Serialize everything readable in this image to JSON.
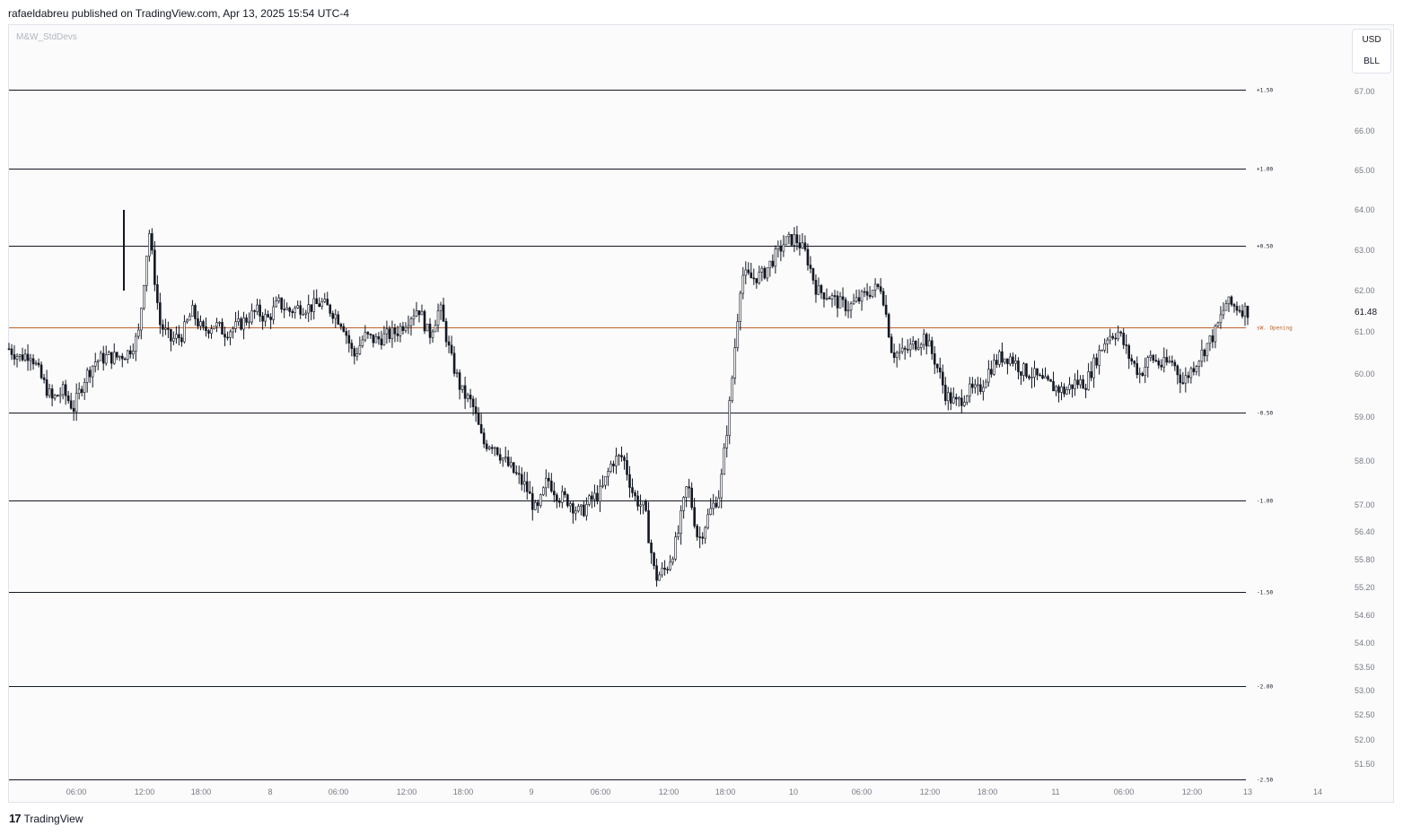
{
  "header": {
    "publisher_text": "rafaeldabreu published on TradingView.com, Apr 13, 2025 15:54 UTC-4"
  },
  "indicator": {
    "name": "M&W_StdDevs"
  },
  "currency": {
    "primary": "USD",
    "secondary": "BLL"
  },
  "footer": {
    "brand": "TradingView",
    "logo_glyph": "17"
  },
  "colors": {
    "opening_line": "#c0622d",
    "level_line": "#131722",
    "candles": "#131722",
    "background": "#fbfbfb",
    "axis_text": "#787b86"
  },
  "chart_data": {
    "type": "candlestick",
    "title": "",
    "last_price": "61.48",
    "y_axis_ticks": [
      "67.00",
      "66.00",
      "65.00",
      "64.00",
      "63.00",
      "62.00",
      "61.00",
      "60.00",
      "59.00",
      "58.00",
      "57.00",
      "56.40",
      "55.80",
      "55.20",
      "54.60",
      "54.00",
      "53.50",
      "53.00",
      "52.50",
      "52.00",
      "51.50"
    ],
    "x_axis_ticks": [
      "06:00",
      "12:00",
      "18:00",
      "8",
      "06:00",
      "12:00",
      "18:00",
      "9",
      "06:00",
      "12:00",
      "18:00",
      "10",
      "06:00",
      "12:00",
      "18:00",
      "11",
      "06:00",
      "12:00",
      "13",
      "14"
    ],
    "levels": [
      {
        "label": "+1.50",
        "price": 67.05
      },
      {
        "label": "+1.00",
        "price": 65.05
      },
      {
        "label": "+0.50",
        "price": 63.1
      },
      {
        "label": "-0.50",
        "price": 59.1
      },
      {
        "label": "-1.00",
        "price": 57.1
      },
      {
        "label": "-1.50",
        "price": 55.1
      },
      {
        "label": "-2.00",
        "price": 53.1
      },
      {
        "label": "-2.50",
        "price": 51.0
      }
    ],
    "opening_line": {
      "label": "sW. Opening",
      "price": 61.1
    },
    "price_path": [
      [
        0,
        60.6
      ],
      [
        1,
        60.4
      ],
      [
        2,
        60.5
      ],
      [
        3,
        59.9
      ],
      [
        4,
        59.4
      ],
      [
        5,
        59.6
      ],
      [
        6,
        59.2
      ],
      [
        7,
        59.9
      ],
      [
        8,
        60.3
      ],
      [
        9,
        60.4
      ],
      [
        10,
        60.4
      ],
      [
        11,
        60.5
      ],
      [
        12,
        60.9
      ],
      [
        13,
        63.5
      ],
      [
        14,
        61.2
      ],
      [
        15,
        60.8
      ],
      [
        16,
        60.9
      ],
      [
        17,
        61.5
      ],
      [
        18,
        61.0
      ],
      [
        19,
        61.2
      ],
      [
        20,
        61.0
      ],
      [
        21,
        61.1
      ],
      [
        22,
        61.3
      ],
      [
        23,
        61.5
      ],
      [
        24,
        61.3
      ],
      [
        25,
        61.7
      ],
      [
        26,
        61.5
      ],
      [
        27,
        61.6
      ],
      [
        28,
        61.6
      ],
      [
        29,
        61.7
      ],
      [
        30,
        61.5
      ],
      [
        31,
        61.2
      ],
      [
        32,
        60.4
      ],
      [
        33,
        60.9
      ],
      [
        34,
        60.8
      ],
      [
        35,
        60.9
      ],
      [
        36,
        61.0
      ],
      [
        37,
        61.3
      ],
      [
        38,
        61.6
      ],
      [
        39,
        60.9
      ],
      [
        40,
        61.6
      ],
      [
        41,
        60.4
      ],
      [
        42,
        59.6
      ],
      [
        43,
        59.3
      ],
      [
        44,
        58.4
      ],
      [
        45,
        58.4
      ],
      [
        46,
        58.0
      ],
      [
        47,
        57.7
      ],
      [
        48,
        57.4
      ],
      [
        49,
        56.8
      ],
      [
        50,
        57.6
      ],
      [
        51,
        57.2
      ],
      [
        52,
        57.1
      ],
      [
        53,
        56.8
      ],
      [
        54,
        57.1
      ],
      [
        55,
        57.3
      ],
      [
        56,
        58.0
      ],
      [
        57,
        58.1
      ],
      [
        58,
        57.2
      ],
      [
        59,
        56.9
      ],
      [
        60,
        55.4
      ],
      [
        61,
        55.6
      ],
      [
        62,
        56.2
      ],
      [
        63,
        57.5
      ],
      [
        64,
        56.2
      ],
      [
        65,
        56.8
      ],
      [
        66,
        57.3
      ],
      [
        67,
        59.5
      ],
      [
        68,
        62.4
      ],
      [
        69,
        62.3
      ],
      [
        70,
        62.4
      ],
      [
        71,
        62.8
      ],
      [
        72,
        63.2
      ],
      [
        73,
        63.3
      ],
      [
        74,
        62.9
      ],
      [
        75,
        62.0
      ],
      [
        76,
        61.9
      ],
      [
        77,
        61.7
      ],
      [
        78,
        61.6
      ],
      [
        79,
        61.8
      ],
      [
        80,
        62.0
      ],
      [
        81,
        62.1
      ],
      [
        82,
        60.5
      ],
      [
        83,
        60.5
      ],
      [
        84,
        60.7
      ],
      [
        85,
        60.9
      ],
      [
        86,
        60.3
      ],
      [
        87,
        59.5
      ],
      [
        88,
        59.3
      ],
      [
        89,
        59.6
      ],
      [
        90,
        59.6
      ],
      [
        91,
        60.1
      ],
      [
        92,
        60.4
      ],
      [
        93,
        60.4
      ],
      [
        94,
        60.1
      ],
      [
        95,
        60.0
      ],
      [
        96,
        59.8
      ],
      [
        97,
        59.7
      ],
      [
        98,
        59.6
      ],
      [
        99,
        59.8
      ],
      [
        100,
        59.8
      ],
      [
        101,
        60.4
      ],
      [
        102,
        60.9
      ],
      [
        103,
        61.0
      ],
      [
        104,
        60.4
      ],
      [
        105,
        60.0
      ],
      [
        106,
        60.4
      ],
      [
        107,
        60.2
      ],
      [
        108,
        60.3
      ],
      [
        109,
        59.8
      ],
      [
        110,
        60.2
      ],
      [
        111,
        60.6
      ],
      [
        112,
        61.0
      ],
      [
        113,
        61.7
      ],
      [
        114,
        61.6
      ],
      [
        115,
        61.5
      ]
    ]
  }
}
